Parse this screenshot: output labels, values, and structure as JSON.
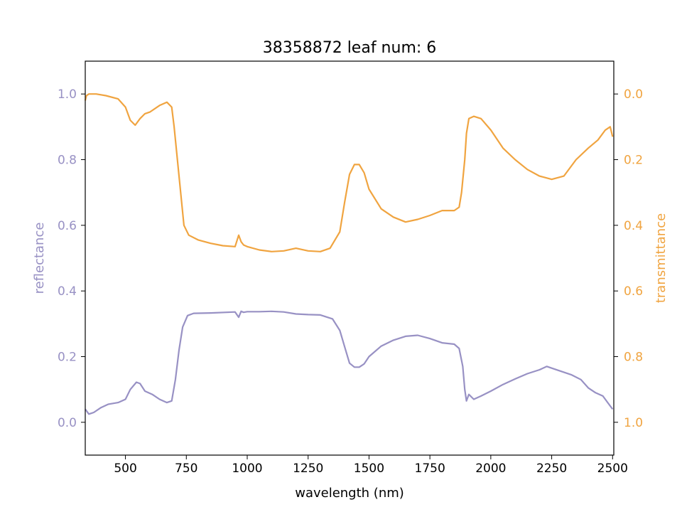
{
  "chart_data": {
    "type": "line",
    "title": "38358872 leaf num: 6",
    "xlabel": "wavelength (nm)",
    "xlim": [
      335,
      2505
    ],
    "x_ticks": [
      500,
      750,
      1000,
      1250,
      1500,
      1750,
      2000,
      2250,
      2500
    ],
    "left_axis": {
      "label": "reflectance",
      "ylim": [
        -0.1,
        1.1
      ],
      "ticks": [
        0.0,
        0.2,
        0.4,
        0.6,
        0.8,
        1.0
      ],
      "color": "#9891c4"
    },
    "right_axis": {
      "label": "transmittance",
      "ylim": [
        1.1,
        -0.1
      ],
      "inverted": true,
      "ticks": [
        0.0,
        0.2,
        0.4,
        0.6,
        0.8,
        1.0
      ],
      "color": "#f0a440"
    },
    "grid": false,
    "series": [
      {
        "axis": "left",
        "color": "#9891c4",
        "x": [
          335,
          350,
          370,
          400,
          430,
          470,
          500,
          520,
          545,
          560,
          580,
          610,
          640,
          670,
          690,
          705,
          720,
          735,
          755,
          780,
          850,
          950,
          965,
          975,
          985,
          1000,
          1050,
          1100,
          1150,
          1200,
          1250,
          1300,
          1350,
          1380,
          1400,
          1420,
          1440,
          1460,
          1480,
          1500,
          1550,
          1600,
          1650,
          1700,
          1750,
          1800,
          1850,
          1870,
          1885,
          1893,
          1900,
          1910,
          1930,
          1960,
          2000,
          2050,
          2100,
          2150,
          2200,
          2230,
          2250,
          2290,
          2330,
          2370,
          2400,
          2430,
          2460,
          2480,
          2500
        ],
        "y": [
          0.04,
          0.025,
          0.03,
          0.045,
          0.055,
          0.06,
          0.07,
          0.1,
          0.122,
          0.118,
          0.095,
          0.085,
          0.07,
          0.06,
          0.065,
          0.13,
          0.22,
          0.29,
          0.325,
          0.332,
          0.333,
          0.336,
          0.32,
          0.338,
          0.335,
          0.337,
          0.337,
          0.338,
          0.336,
          0.33,
          0.328,
          0.327,
          0.315,
          0.28,
          0.23,
          0.18,
          0.168,
          0.168,
          0.178,
          0.2,
          0.232,
          0.25,
          0.262,
          0.265,
          0.255,
          0.242,
          0.238,
          0.225,
          0.17,
          0.1,
          0.065,
          0.085,
          0.07,
          0.08,
          0.095,
          0.115,
          0.132,
          0.148,
          0.16,
          0.17,
          0.165,
          0.155,
          0.145,
          0.13,
          0.105,
          0.09,
          0.08,
          0.06,
          0.04
        ]
      },
      {
        "axis": "right",
        "color": "#f0a440",
        "x": [
          335,
          340,
          350,
          380,
          420,
          470,
          500,
          520,
          540,
          560,
          580,
          600,
          640,
          670,
          690,
          700,
          720,
          740,
          760,
          800,
          850,
          900,
          950,
          965,
          975,
          985,
          1000,
          1050,
          1100,
          1150,
          1200,
          1250,
          1300,
          1340,
          1380,
          1400,
          1420,
          1440,
          1460,
          1480,
          1500,
          1550,
          1600,
          1650,
          1700,
          1750,
          1800,
          1850,
          1870,
          1880,
          1893,
          1900,
          1910,
          1930,
          1960,
          2000,
          2050,
          2100,
          2150,
          2200,
          2250,
          2300,
          2350,
          2400,
          2440,
          2470,
          2490,
          2500
        ],
        "y": [
          0.02,
          0.005,
          0.0,
          0.0,
          0.005,
          0.015,
          0.04,
          0.08,
          0.095,
          0.075,
          0.06,
          0.055,
          0.035,
          0.025,
          0.04,
          0.1,
          0.25,
          0.4,
          0.43,
          0.445,
          0.455,
          0.462,
          0.465,
          0.43,
          0.45,
          0.46,
          0.465,
          0.475,
          0.48,
          0.478,
          0.47,
          0.478,
          0.48,
          0.47,
          0.42,
          0.33,
          0.245,
          0.215,
          0.215,
          0.24,
          0.29,
          0.35,
          0.375,
          0.39,
          0.382,
          0.37,
          0.355,
          0.355,
          0.345,
          0.3,
          0.2,
          0.12,
          0.075,
          0.068,
          0.075,
          0.11,
          0.165,
          0.2,
          0.23,
          0.25,
          0.26,
          0.25,
          0.2,
          0.165,
          0.14,
          0.11,
          0.1,
          0.13
        ]
      }
    ]
  }
}
